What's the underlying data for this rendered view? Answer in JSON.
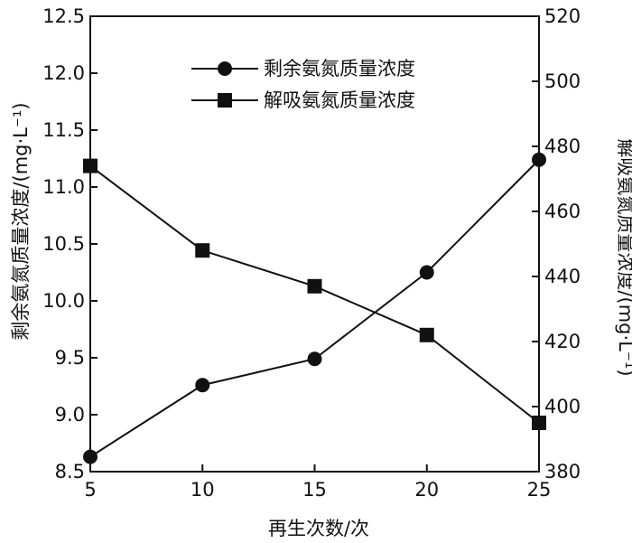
{
  "chart_data": {
    "type": "line",
    "x": [
      5,
      10,
      15,
      20,
      25
    ],
    "xlabel": "再生次数/次",
    "xlim": [
      5,
      25
    ],
    "xticks": [
      "5",
      "10",
      "15",
      "20",
      "25"
    ],
    "y_left": {
      "label": "剩余氨氮质量浓度/(mg·L⁻¹)",
      "lim": [
        8.5,
        12.5
      ],
      "ticks": [
        "8.5",
        "9.0",
        "9.5",
        "10.0",
        "10.5",
        "11.0",
        "11.5",
        "12.0",
        "12.5"
      ]
    },
    "y_right": {
      "label": "解吸氨氮质量浓度/(mg·L⁻¹)",
      "lim": [
        380,
        520
      ],
      "ticks": [
        "380",
        "400",
        "420",
        "440",
        "460",
        "480",
        "500",
        "520"
      ]
    },
    "series": [
      {
        "name": "剩余氨氮质量浓度",
        "axis": "left",
        "marker": "circle",
        "values": [
          8.63,
          9.26,
          9.49,
          10.25,
          11.24
        ]
      },
      {
        "name": "解吸氨氮质量浓度",
        "axis": "right",
        "marker": "square",
        "values": [
          474,
          448,
          437,
          422,
          395
        ]
      }
    ],
    "legend_position": "top-center",
    "grid": false,
    "colors": {
      "line": "#111111",
      "marker": "#111111"
    }
  }
}
